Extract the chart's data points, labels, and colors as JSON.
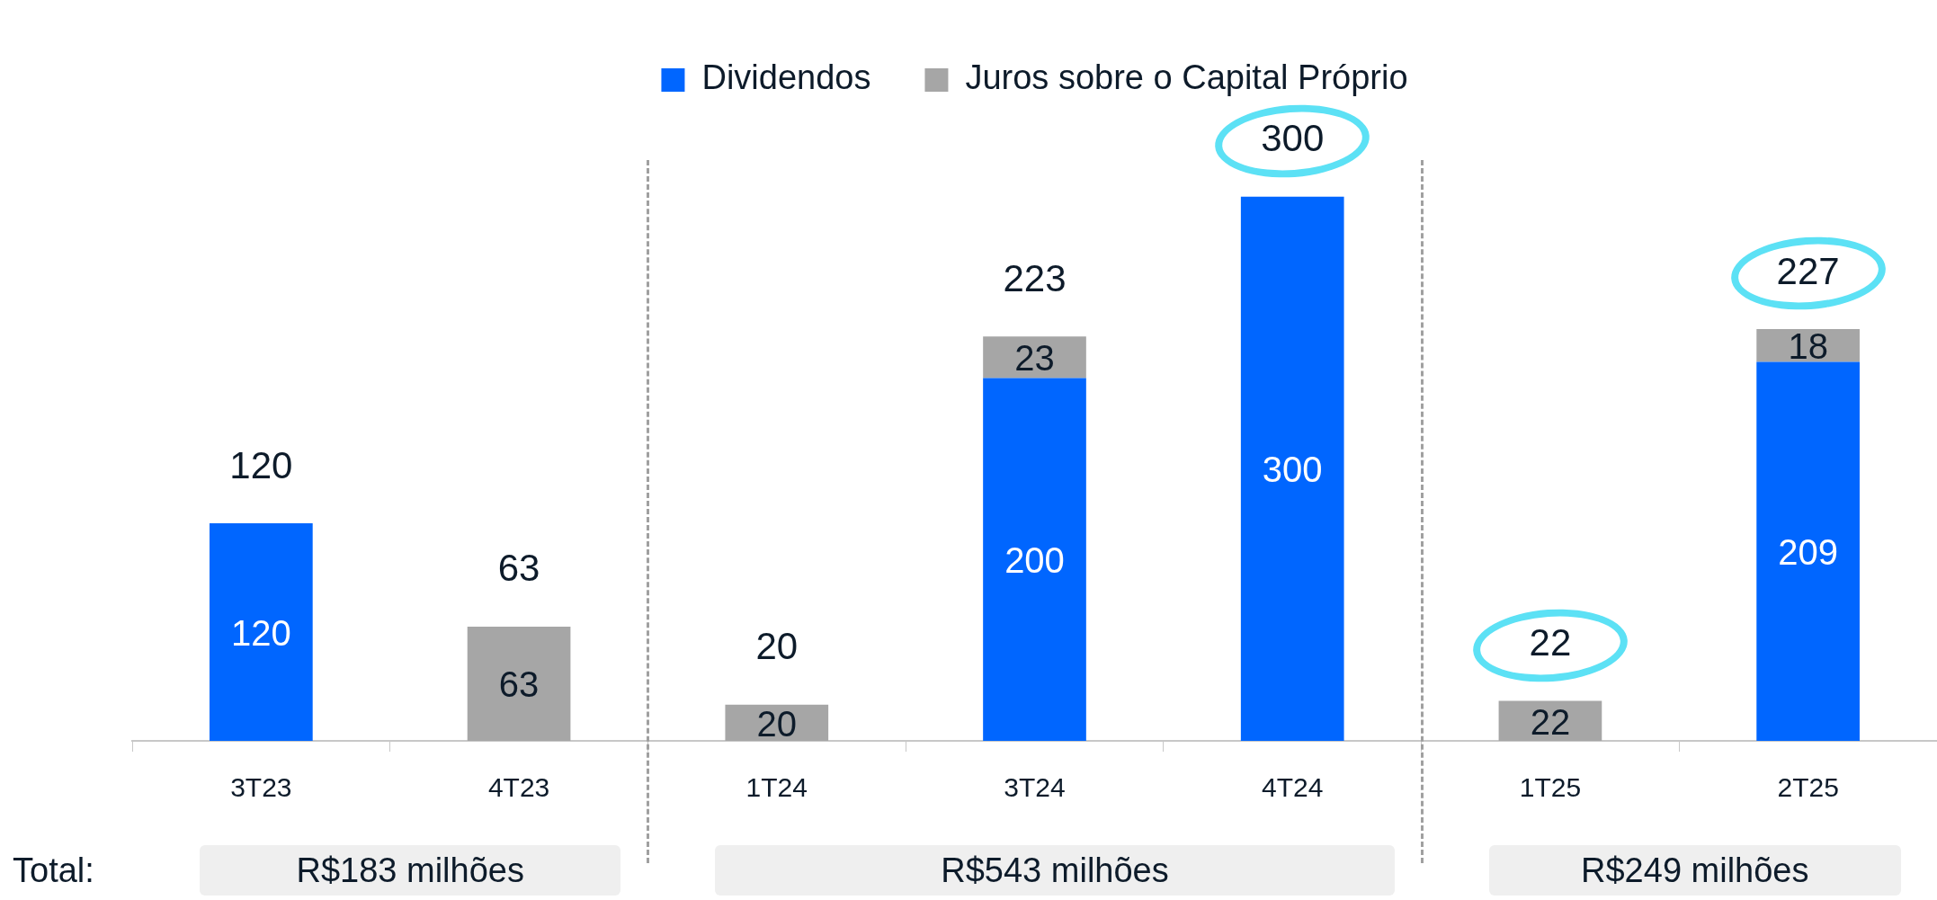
{
  "chart_data": {
    "type": "bar",
    "stacked": true,
    "categories": [
      "3T23",
      "4T23",
      "1T24",
      "3T24",
      "4T24",
      "1T25",
      "2T25"
    ],
    "series": [
      {
        "name": "Dividendos",
        "color": "#0066ff",
        "values": [
          120,
          null,
          null,
          200,
          300,
          null,
          209
        ]
      },
      {
        "name": "Juros sobre o Capital Próprio",
        "color": "#a6a6a6",
        "values": [
          null,
          63,
          20,
          23,
          null,
          22,
          18
        ]
      }
    ],
    "data_labels": true,
    "totals": [
      "120",
      "63",
      "20",
      "223",
      "300",
      "22",
      "227"
    ],
    "legend": "top",
    "grid": false,
    "tick_labels": "x",
    "annotations": [
      "Total:",
      "R$183 milhões",
      "R$543 milhões",
      "R$249 milhões"
    ]
  }
}
